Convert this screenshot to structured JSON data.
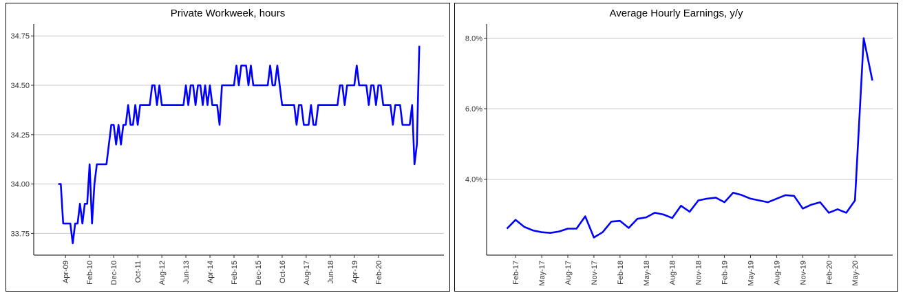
{
  "colors": {
    "line": "#0000ff",
    "grid": "#c8c8c8",
    "axis": "#000000"
  },
  "chart_data": [
    {
      "type": "line",
      "title": "Private Workweek, hours",
      "xlabel": "",
      "ylabel": "",
      "ylim": [
        33.64,
        34.81
      ],
      "yticks": [
        "33.75",
        "34.00",
        "34.25",
        "34.50",
        "34.75"
      ],
      "ytick_values": [
        33.75,
        34.0,
        34.25,
        34.5,
        34.75
      ],
      "xticks": [
        "Apr-09",
        "Feb-10",
        "Dec-10",
        "Oct-11",
        "Aug-12",
        "Jun-13",
        "Apr-14",
        "Feb-15",
        "Dec-15",
        "Oct-16",
        "Aug-17",
        "Jun-18",
        "Apr-19",
        "Feb-20"
      ],
      "x_start": "Jan-09",
      "grid": "horizontal",
      "values": [
        34.0,
        34.0,
        33.8,
        33.8,
        33.8,
        33.8,
        33.7,
        33.8,
        33.8,
        33.9,
        33.8,
        33.9,
        33.9,
        34.1,
        33.8,
        34.0,
        34.1,
        34.1,
        34.1,
        34.1,
        34.1,
        34.2,
        34.3,
        34.3,
        34.2,
        34.3,
        34.2,
        34.3,
        34.3,
        34.4,
        34.3,
        34.3,
        34.4,
        34.3,
        34.4,
        34.4,
        34.4,
        34.4,
        34.4,
        34.5,
        34.5,
        34.4,
        34.5,
        34.4,
        34.4,
        34.4,
        34.4,
        34.4,
        34.4,
        34.4,
        34.4,
        34.4,
        34.4,
        34.5,
        34.4,
        34.5,
        34.5,
        34.4,
        34.5,
        34.5,
        34.4,
        34.5,
        34.4,
        34.5,
        34.4,
        34.4,
        34.4,
        34.3,
        34.5,
        34.5,
        34.5,
        34.5,
        34.5,
        34.5,
        34.6,
        34.5,
        34.6,
        34.6,
        34.6,
        34.5,
        34.6,
        34.5,
        34.5,
        34.5,
        34.5,
        34.5,
        34.5,
        34.5,
        34.6,
        34.5,
        34.5,
        34.6,
        34.5,
        34.4,
        34.4,
        34.4,
        34.4,
        34.4,
        34.4,
        34.3,
        34.4,
        34.4,
        34.3,
        34.3,
        34.3,
        34.4,
        34.3,
        34.3,
        34.4,
        34.4,
        34.4,
        34.4,
        34.4,
        34.4,
        34.4,
        34.4,
        34.4,
        34.5,
        34.5,
        34.4,
        34.5,
        34.5,
        34.5,
        34.5,
        34.6,
        34.5,
        34.5,
        34.5,
        34.5,
        34.4,
        34.5,
        34.5,
        34.4,
        34.5,
        34.5,
        34.4,
        34.4,
        34.4,
        34.4,
        34.3,
        34.4,
        34.4,
        34.4,
        34.3,
        34.3,
        34.3,
        34.3,
        34.4,
        34.1,
        34.2,
        34.7
      ]
    },
    {
      "type": "line",
      "title": "Average Hourly Earnings, y/y",
      "xlabel": "",
      "ylabel": "",
      "ylim": [
        1.85,
        8.4
      ],
      "yticks": [
        "4.0%",
        "6.0%",
        "8.0%"
      ],
      "ytick_values": [
        4.0,
        6.0,
        8.0
      ],
      "xticks": [
        "Feb-17",
        "May-17",
        "Aug-17",
        "Nov-17",
        "Feb-18",
        "May-18",
        "Aug-18",
        "Nov-18",
        "Feb-19",
        "May-19",
        "Aug-19",
        "Nov-19",
        "Feb-20",
        "May-20"
      ],
      "x_start": "Jan-17",
      "grid": "horizontal",
      "values": [
        2.6,
        2.85,
        2.65,
        2.55,
        2.5,
        2.48,
        2.52,
        2.6,
        2.6,
        2.95,
        2.35,
        2.5,
        2.8,
        2.82,
        2.62,
        2.88,
        2.92,
        3.05,
        3.0,
        2.9,
        3.25,
        3.08,
        3.4,
        3.45,
        3.48,
        3.35,
        3.62,
        3.55,
        3.45,
        3.4,
        3.35,
        3.45,
        3.55,
        3.53,
        3.17,
        3.28,
        3.35,
        3.05,
        3.15,
        3.05,
        3.4,
        8.0,
        6.8
      ]
    }
  ]
}
